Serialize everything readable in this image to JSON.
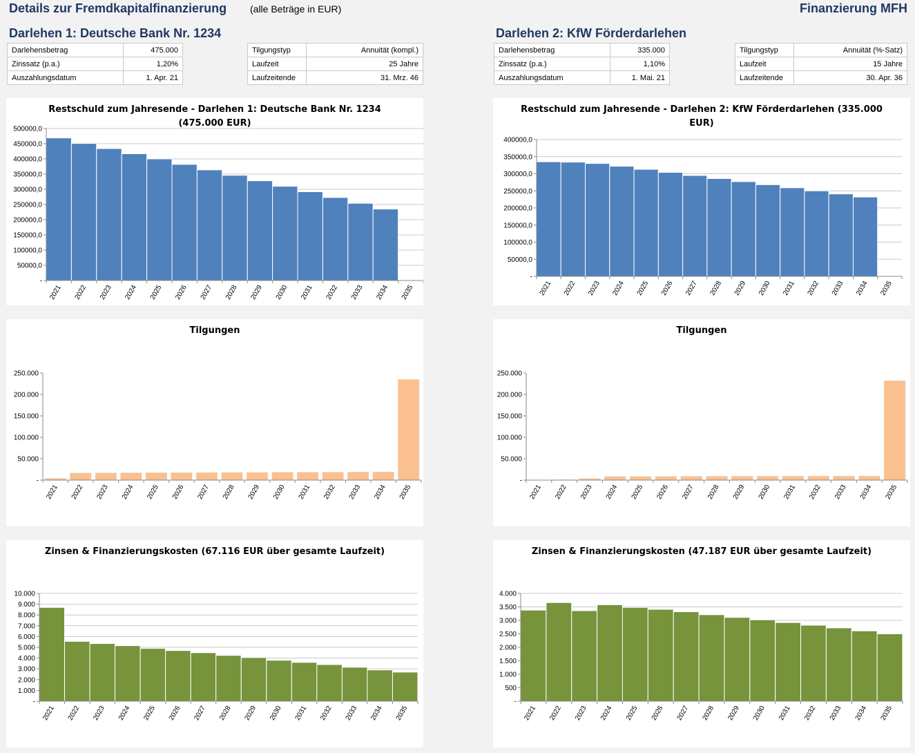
{
  "header": {
    "title": "Details zur Fremdkapitalfinanzierung",
    "note": "(alle Beträge in EUR)",
    "right_title": "Finanzierung MFH"
  },
  "loans": [
    {
      "title": "Darlehen 1: Deutsche Bank Nr. 1234",
      "left_table": [
        {
          "label": "Darlehensbetrag",
          "value": "475.000"
        },
        {
          "label": "Zinssatz (p.a.)",
          "value": "1,20%"
        },
        {
          "label": "Auszahlungsdatum",
          "value": "1. Apr. 21"
        }
      ],
      "right_table": [
        {
          "label": "Tilgungstyp",
          "value": "Annuität (kompl.)"
        },
        {
          "label": "Laufzeit",
          "value": "25 Jahre"
        },
        {
          "label": "Laufzeitende",
          "value": "31. Mrz. 46"
        }
      ]
    },
    {
      "title": "Darlehen 2: KfW Förderdarlehen",
      "left_table": [
        {
          "label": "Darlehensbetrag",
          "value": "335.000"
        },
        {
          "label": "Zinssatz (p.a.)",
          "value": "1,10%"
        },
        {
          "label": "Auszahlungsdatum",
          "value": "1. Mai. 21"
        }
      ],
      "right_table": [
        {
          "label": "Tilgungstyp",
          "value": "Annuität (%-Satz)"
        },
        {
          "label": "Laufzeit",
          "value": "15 Jahre"
        },
        {
          "label": "Laufzeitende",
          "value": "30. Apr. 36"
        }
      ]
    }
  ],
  "colors": {
    "restschuld": "#4f81bd",
    "tilgung": "#fac090",
    "zinsen": "#77933c"
  },
  "chart_data": [
    {
      "id": "restschuld-1",
      "type": "bar",
      "title_lines": [
        "Restschuld zum Jahresende - Darlehen 1: Deutsche Bank Nr. 1234",
        "(475.000 EUR)"
      ],
      "categories": [
        "2021",
        "2022",
        "2023",
        "2024",
        "2025",
        "2026",
        "2027",
        "2028",
        "2029",
        "2030",
        "2031",
        "2032",
        "2033",
        "2034",
        "2035"
      ],
      "values": [
        469000,
        451000,
        434000,
        417000,
        400000,
        382000,
        364000,
        346000,
        328000,
        310000,
        292000,
        273000,
        254000,
        235000,
        0
      ],
      "ylim": [
        0,
        500000
      ],
      "yticks": [
        "-",
        "50000,0",
        "100000,0",
        "150000,0",
        "200000,0",
        "250000,0",
        "300000,0",
        "350000,0",
        "400000,0",
        "450000,0",
        "500000,0"
      ],
      "color": "#4f81bd",
      "grid": true,
      "gap": false
    },
    {
      "id": "restschuld-2",
      "type": "bar",
      "title_lines": [
        "Restschuld zum Jahresende - Darlehen 2: KfW Förderdarlehen (335.000",
        "EUR)"
      ],
      "categories": [
        "2021",
        "2022",
        "2023",
        "2024",
        "2025",
        "2026",
        "2027",
        "2028",
        "2029",
        "2030",
        "2031",
        "2032",
        "2033",
        "2034",
        "2035"
      ],
      "values": [
        335000,
        334000,
        330000,
        322000,
        313000,
        304000,
        295000,
        286000,
        277000,
        268000,
        259000,
        250000,
        241000,
        232000,
        0
      ],
      "ylim": [
        0,
        400000
      ],
      "yticks": [
        "-",
        "50000,0",
        "100000,0",
        "150000,0",
        "200000,0",
        "250000,0",
        "300000,0",
        "350000,0",
        "400000,0"
      ],
      "color": "#4f81bd",
      "grid": true,
      "gap": false
    },
    {
      "id": "tilgungen-1",
      "type": "bar",
      "title_lines": [
        "Tilgungen"
      ],
      "categories": [
        "2021",
        "2022",
        "2023",
        "2024",
        "2025",
        "2026",
        "2027",
        "2028",
        "2029",
        "2030",
        "2031",
        "2032",
        "2033",
        "2034",
        "2035"
      ],
      "values": [
        4000,
        16500,
        16700,
        16900,
        17100,
        17300,
        17500,
        17700,
        17900,
        18100,
        18300,
        18500,
        18800,
        19000,
        235000
      ],
      "ylim": [
        0,
        250000
      ],
      "yticks": [
        "-",
        "50.000",
        "100.000",
        "150.000",
        "200.000",
        "250.000"
      ],
      "color": "#fac090",
      "grid": false,
      "gap": true
    },
    {
      "id": "tilgungen-2",
      "type": "bar",
      "title_lines": [
        "Tilgungen"
      ],
      "categories": [
        "2021",
        "2022",
        "2023",
        "2024",
        "2025",
        "2026",
        "2027",
        "2028",
        "2029",
        "2030",
        "2031",
        "2032",
        "2033",
        "2034",
        "2035"
      ],
      "values": [
        0,
        800,
        3500,
        8500,
        8600,
        8700,
        8800,
        8900,
        9000,
        9100,
        9200,
        9300,
        9400,
        9500,
        232000
      ],
      "ylim": [
        0,
        250000
      ],
      "yticks": [
        "-",
        "50.000",
        "100.000",
        "150.000",
        "200.000",
        "250.000"
      ],
      "color": "#fac090",
      "grid": false,
      "gap": true
    },
    {
      "id": "zinsen-1",
      "type": "bar",
      "title_lines": [
        "Zinsen & Finanzierungskosten (67.116 EUR über gesamte Laufzeit)"
      ],
      "categories": [
        "2021",
        "2022",
        "2023",
        "2024",
        "2025",
        "2026",
        "2027",
        "2028",
        "2029",
        "2030",
        "2031",
        "2032",
        "2033",
        "2034",
        "2035"
      ],
      "values": [
        8700,
        5550,
        5350,
        5150,
        4900,
        4700,
        4500,
        4250,
        4050,
        3800,
        3600,
        3400,
        3150,
        2900,
        2700
      ],
      "ylim": [
        0,
        10000
      ],
      "yticks": [
        "-",
        "1.000",
        "2.000",
        "3.000",
        "4.000",
        "5.000",
        "6.000",
        "7.000",
        "8.000",
        "9.000",
        "10.000"
      ],
      "color": "#77933c",
      "grid": true,
      "gap": false
    },
    {
      "id": "zinsen-2",
      "type": "bar",
      "title_lines": [
        "Zinsen & Finanzierungskosten (47.187 EUR über gesamte Laufzeit)"
      ],
      "categories": [
        "2021",
        "2022",
        "2023",
        "2024",
        "2025",
        "2026",
        "2027",
        "2028",
        "2029",
        "2030",
        "2031",
        "2032",
        "2033",
        "2034",
        "2035"
      ],
      "values": [
        3380,
        3660,
        3360,
        3580,
        3480,
        3410,
        3320,
        3210,
        3110,
        3020,
        2920,
        2820,
        2720,
        2610,
        2500
      ],
      "ylim": [
        0,
        4000
      ],
      "yticks": [
        "-",
        "500",
        "1.000",
        "1.500",
        "2.000",
        "2.500",
        "3.000",
        "3.500",
        "4.000"
      ],
      "color": "#77933c",
      "grid": true,
      "gap": false
    }
  ]
}
